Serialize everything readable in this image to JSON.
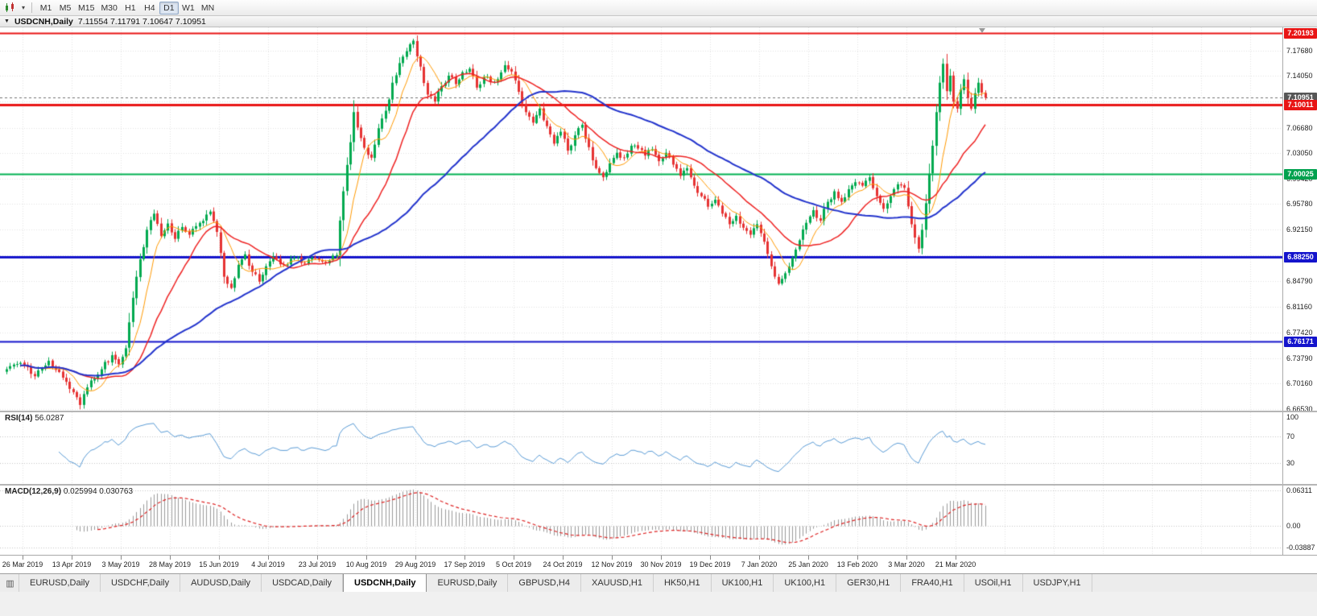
{
  "toolbar": {
    "timeframes": [
      {
        "label": "M1",
        "active": false
      },
      {
        "label": "M5",
        "active": false
      },
      {
        "label": "M15",
        "active": false
      },
      {
        "label": "M30",
        "active": false
      },
      {
        "label": "H1",
        "active": false
      },
      {
        "label": "H4",
        "active": false
      },
      {
        "label": "D1",
        "active": true
      },
      {
        "label": "W1",
        "active": false
      },
      {
        "label": "MN",
        "active": false
      }
    ]
  },
  "chart_window": {
    "caption": {
      "menu_icon": "▼",
      "symbol": "USDCNH,Daily",
      "ohlc": "7.11554 7.11791 7.10647 7.10951"
    }
  },
  "chart_data": {
    "type": "candlestick",
    "symbol": "USDCNH",
    "period": "Daily",
    "current": {
      "open": 7.11554,
      "high": 7.11791,
      "low": 7.10647,
      "close": 7.10951
    },
    "num_candles": 280,
    "close_path_anchors": [
      [
        0,
        6.722
      ],
      [
        4,
        6.731
      ],
      [
        8,
        6.712
      ],
      [
        12,
        6.734
      ],
      [
        15,
        6.718
      ],
      [
        18,
        6.694
      ],
      [
        21,
        6.671
      ],
      [
        24,
        6.706
      ],
      [
        27,
        6.722
      ],
      [
        30,
        6.742
      ],
      [
        32,
        6.729
      ],
      [
        34,
        6.752
      ],
      [
        36,
        6.824
      ],
      [
        38,
        6.879
      ],
      [
        40,
        6.921
      ],
      [
        42,
        6.944
      ],
      [
        44,
        6.912
      ],
      [
        46,
        6.93
      ],
      [
        48,
        6.908
      ],
      [
        50,
        6.925
      ],
      [
        52,
        6.914
      ],
      [
        55,
        6.931
      ],
      [
        58,
        6.947
      ],
      [
        60,
        6.918
      ],
      [
        62,
        6.854
      ],
      [
        64,
        6.838
      ],
      [
        66,
        6.871
      ],
      [
        68,
        6.886
      ],
      [
        70,
        6.861
      ],
      [
        72,
        6.847
      ],
      [
        74,
        6.869
      ],
      [
        76,
        6.883
      ],
      [
        79,
        6.871
      ],
      [
        82,
        6.881
      ],
      [
        85,
        6.873
      ],
      [
        88,
        6.88
      ],
      [
        91,
        6.874
      ],
      [
        94,
        6.885
      ],
      [
        96,
        6.976
      ],
      [
        98,
        7.046
      ],
      [
        99,
        7.089
      ],
      [
        101,
        7.052
      ],
      [
        103,
        7.028
      ],
      [
        104,
        7.024
      ],
      [
        106,
        7.066
      ],
      [
        108,
        7.091
      ],
      [
        110,
        7.131
      ],
      [
        112,
        7.159
      ],
      [
        114,
        7.176
      ],
      [
        116,
        7.191
      ],
      [
        118,
        7.154
      ],
      [
        120,
        7.114
      ],
      [
        122,
        7.104
      ],
      [
        124,
        7.126
      ],
      [
        126,
        7.141
      ],
      [
        128,
        7.129
      ],
      [
        130,
        7.146
      ],
      [
        132,
        7.151
      ],
      [
        134,
        7.124
      ],
      [
        136,
        7.139
      ],
      [
        138,
        7.132
      ],
      [
        140,
        7.136
      ],
      [
        142,
        7.156
      ],
      [
        144,
        7.147
      ],
      [
        146,
        7.118
      ],
      [
        148,
        7.089
      ],
      [
        150,
        7.074
      ],
      [
        152,
        7.094
      ],
      [
        154,
        7.069
      ],
      [
        156,
        7.044
      ],
      [
        158,
        7.061
      ],
      [
        160,
        7.034
      ],
      [
        162,
        7.056
      ],
      [
        164,
        7.071
      ],
      [
        166,
        7.039
      ],
      [
        168,
        7.009
      ],
      [
        170,
        6.996
      ],
      [
        172,
        7.016
      ],
      [
        174,
        7.031
      ],
      [
        176,
        7.024
      ],
      [
        178,
        7.041
      ],
      [
        180,
        7.037
      ],
      [
        182,
        7.027
      ],
      [
        184,
        7.036
      ],
      [
        186,
        7.019
      ],
      [
        188,
        7.031
      ],
      [
        190,
        7.014
      ],
      [
        192,
        6.998
      ],
      [
        194,
        7.009
      ],
      [
        196,
        6.984
      ],
      [
        198,
        6.969
      ],
      [
        200,
        6.954
      ],
      [
        202,
        6.964
      ],
      [
        204,
        6.944
      ],
      [
        206,
        6.929
      ],
      [
        208,
        6.941
      ],
      [
        210,
        6.924
      ],
      [
        212,
        6.914
      ],
      [
        214,
        6.929
      ],
      [
        216,
        6.904
      ],
      [
        218,
        6.869
      ],
      [
        220,
        6.844
      ],
      [
        222,
        6.859
      ],
      [
        224,
        6.881
      ],
      [
        226,
        6.906
      ],
      [
        228,
        6.931
      ],
      [
        230,
        6.949
      ],
      [
        232,
        6.934
      ],
      [
        234,
        6.961
      ],
      [
        236,
        6.976
      ],
      [
        238,
        6.961
      ],
      [
        240,
        6.979
      ],
      [
        242,
        6.989
      ],
      [
        244,
        6.984
      ],
      [
        246,
        6.996
      ],
      [
        248,
        6.969
      ],
      [
        250,
        6.951
      ],
      [
        252,
        6.969
      ],
      [
        254,
        6.986
      ],
      [
        256,
        6.981
      ],
      [
        258,
        6.929
      ],
      [
        260,
        6.894
      ],
      [
        261,
        6.921
      ],
      [
        262,
        6.959
      ],
      [
        263,
        7.001
      ],
      [
        264,
        7.041
      ],
      [
        265,
        7.089
      ],
      [
        266,
        7.131
      ],
      [
        267,
        7.158
      ],
      [
        268,
        7.119
      ],
      [
        269,
        7.141
      ],
      [
        270,
        7.104
      ],
      [
        271,
        7.094
      ],
      [
        272,
        7.121
      ],
      [
        273,
        7.136
      ],
      [
        274,
        7.109
      ],
      [
        275,
        7.094
      ],
      [
        276,
        7.116
      ],
      [
        277,
        7.131
      ],
      [
        278,
        7.117
      ],
      [
        279,
        7.10951
      ]
    ],
    "candle_colors": {
      "up": "#00a94f",
      "down": "#e63232"
    },
    "moving_averages": [
      {
        "period": 8,
        "color": "#ff9900",
        "width": 1
      },
      {
        "period": 21,
        "color": "#ee2222",
        "width": 1.5
      },
      {
        "period": 55,
        "color": "#2233cc",
        "width": 2
      }
    ],
    "levels": [
      {
        "price": 7.20193,
        "color": "#e81515",
        "width": 2
      },
      {
        "price": 7.10011,
        "color": "#e81515",
        "width": 3
      },
      {
        "price": 7.00025,
        "color": "#00b050",
        "width": 2
      },
      {
        "price": 6.8825,
        "color": "#1414cc",
        "width": 3
      },
      {
        "price": 6.76171,
        "color": "#1414cc",
        "width": 2
      }
    ],
    "current_price_line": {
      "price": 7.10951,
      "color": "#707070"
    },
    "y_axis": {
      "ticks": [
        "7.21310",
        "7.17680",
        "7.14050",
        "7.10420",
        "7.06680",
        "7.03050",
        "6.99420",
        "6.95780",
        "6.92150",
        "6.88520",
        "6.84790",
        "6.81160",
        "6.77420",
        "6.73790",
        "6.70160",
        "6.66530"
      ],
      "badges": [
        {
          "text": "7.20193",
          "color": "#e81515"
        },
        {
          "text": "7.10951",
          "color": "#565656"
        },
        {
          "text": "7.10011",
          "color": "#e81515"
        },
        {
          "text": "7.00025",
          "color": "#00a14e"
        },
        {
          "text": "6.88250",
          "color": "#1414cc"
        },
        {
          "text": "6.76171",
          "color": "#1414cc"
        }
      ]
    },
    "x_axis": {
      "labels": [
        "26 Mar 2019",
        "13 Apr 2019",
        "3 May 2019",
        "28 May 2019",
        "15 Jun 2019",
        "4 Jul 2019",
        "23 Jul 2019",
        "10 Aug 2019",
        "29 Aug 2019",
        "17 Sep 2019",
        "5 Oct 2019",
        "24 Oct 2019",
        "12 Nov 2019",
        "30 Nov 2019",
        "19 Dec 2019",
        "7 Jan 2020",
        "25 Jan 2020",
        "13 Feb 2020",
        "3 Mar 2020",
        "21 Mar 2020"
      ]
    },
    "indicators": [
      {
        "name": "RSI",
        "label": "RSI(14)",
        "value": "56.0287",
        "color": "#5a9bd5",
        "levels": [
          70,
          30
        ],
        "ticks": [
          {
            "v": 100,
            "text": "100"
          },
          {
            "v": 70,
            "text": "70"
          },
          {
            "v": 30,
            "text": "30"
          }
        ]
      },
      {
        "name": "MACD",
        "label": "MACD(12,26,9)",
        "value": "0.025994 0.030763",
        "histogram_color": "#9a9a9a",
        "signal_color": "#dd2222",
        "ticks": [
          {
            "v": 0.06311,
            "text": "0.06311"
          },
          {
            "v": 0,
            "text": "0.00"
          },
          {
            "v": -0.03887,
            "text": "-0.03887"
          }
        ]
      }
    ]
  },
  "tabbar": {
    "tabs": [
      {
        "label": "EURUSD,Daily",
        "active": false
      },
      {
        "label": "USDCHF,Daily",
        "active": false
      },
      {
        "label": "AUDUSD,Daily",
        "active": false
      },
      {
        "label": "USDCAD,Daily",
        "active": false
      },
      {
        "label": "USDCNH,Daily",
        "active": true
      },
      {
        "label": "EURUSD,Daily",
        "active": false
      },
      {
        "label": "GBPUSD,H4",
        "active": false
      },
      {
        "label": "XAUUSD,H1",
        "active": false
      },
      {
        "label": "HK50,H1",
        "active": false
      },
      {
        "label": "UK100,H1",
        "active": false
      },
      {
        "label": "UK100,H1",
        "active": false
      },
      {
        "label": "GER30,H1",
        "active": false
      },
      {
        "label": "FRA40,H1",
        "active": false
      },
      {
        "label": "USOil,H1",
        "active": false
      },
      {
        "label": "USDJPY,H1",
        "active": false
      }
    ]
  }
}
